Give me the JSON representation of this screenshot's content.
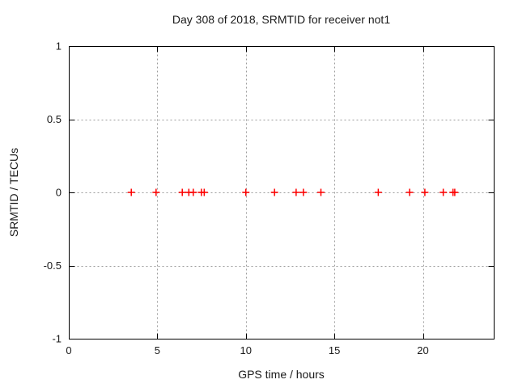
{
  "window": {
    "background": "#ffffff"
  },
  "chart_data": {
    "type": "scatter",
    "title": "Day 308 of 2018, SRMTID for receiver not1",
    "xlabel": "GPS time / hours",
    "ylabel": "SRMTID / TECUs",
    "xlim": [
      0,
      24
    ],
    "ylim": [
      -1,
      1
    ],
    "x_tick_values": [
      0,
      5,
      10,
      15,
      20
    ],
    "x_tick_labels": [
      "0",
      "5",
      "10",
      "15",
      "20"
    ],
    "y_tick_values": [
      -1,
      -0.5,
      0,
      0.5,
      1
    ],
    "y_tick_labels": [
      "-1",
      "-0.5",
      "0",
      "0.5",
      "1"
    ],
    "grid": true,
    "grid_style": "dashed",
    "legend": "none",
    "marker": "plus",
    "series": [
      {
        "name": "SRMTID",
        "color": "#ff0000",
        "x": [
          3.53,
          4.93,
          6.41,
          6.78,
          7.03,
          7.49,
          7.65,
          10.0,
          11.62,
          12.84,
          13.25,
          14.24,
          17.48,
          19.25,
          20.11,
          21.15,
          21.7,
          21.8
        ],
        "y": [
          0,
          0,
          0,
          0,
          0,
          0,
          0,
          0,
          0,
          0,
          0,
          0,
          0,
          0,
          0,
          0,
          0,
          0
        ]
      }
    ],
    "colors": {
      "border": "#000000",
      "grid": "#9b9b9b",
      "text": "#1a1a1a",
      "marker": "#ff0000"
    }
  }
}
